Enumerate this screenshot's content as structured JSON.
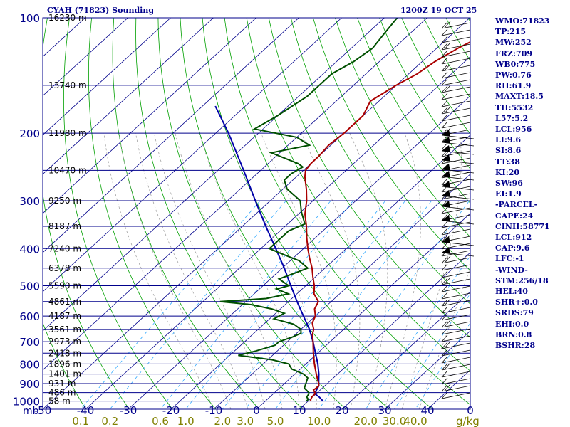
{
  "header": {
    "station": "CYAH (71823) Sounding",
    "time": "1200Z 19 OCT 25"
  },
  "indices": [
    "WMO:71823",
    "TP:215",
    "MW:252",
    "FRZ:709",
    "WB0:775",
    "PW:0.76",
    "RH:61.9",
    "MAXT:18.5",
    "TH:5532",
    "L57:5.2",
    "LCL:956",
    "LI:9.6",
    "SI:8.6",
    "TT:38",
    "KI:20",
    "SW:96",
    "EI:1.9",
    "-PARCEL-",
    "CAPE:24",
    "CINH:58771",
    "LCL:912",
    "CAP:9.6",
    "LFC:-1",
    "-WIND-",
    "STM:256/18",
    "HEL:40",
    "SHR+:0.0",
    "SRDS:79",
    "EHI:0.0",
    "BRN:0.8",
    "BSHR:28"
  ],
  "colors": {
    "border": "#00008b",
    "isobar": "#00008b",
    "isotherm": "#00008b",
    "dry_adiabat": "#00a000",
    "moist_adiabat": "#9a9a9a",
    "mixing_ratio": "#33aaff",
    "temperature": "#aa0000",
    "dewpoint": "#005000",
    "parcel": "#0000aa",
    "wind": "#000000",
    "text": "#00008b",
    "mixing_label": "#808000"
  },
  "chart_data": {
    "type": "skew-t log-p sounding",
    "title": "CYAH (71823) Sounding",
    "ylabel": "mb",
    "xlabel_units": "C",
    "mixing_ratio_units": "g/kg",
    "pressure_ticks": [
      100,
      200,
      300,
      400,
      500,
      600,
      700,
      800,
      900,
      1000
    ],
    "temperature_ticks": [
      -50,
      -40,
      -30,
      -20,
      -10,
      0,
      10,
      20,
      30,
      40
    ],
    "temperature_tick_labels": [
      "-50",
      "-40",
      "-30",
      "-20",
      "-10",
      "0",
      "10",
      "20",
      "30",
      "40"
    ],
    "mixing_ratio_labels": [
      "0.1",
      "0.2",
      "0.6",
      "1.0",
      "2.0",
      "3.0",
      "5.0",
      "10.0",
      "20.0",
      "30.0",
      "40.0"
    ],
    "mixing_ratio_values": [
      0.1,
      0.2,
      0.6,
      1.0,
      2.0,
      3.0,
      5.0,
      10.0,
      20.0,
      30.0,
      40.0
    ],
    "trailing_tick": "0",
    "height_labels": [
      {
        "p": 100,
        "label": "16230 m"
      },
      {
        "p": 150,
        "label": "13740 m"
      },
      {
        "p": 200,
        "label": "11980 m"
      },
      {
        "p": 250,
        "label": "10470 m"
      },
      {
        "p": 300,
        "label": "9250 m"
      },
      {
        "p": 350,
        "label": "8187 m"
      },
      {
        "p": 400,
        "label": "7240 m"
      },
      {
        "p": 450,
        "label": "6378 m"
      },
      {
        "p": 500,
        "label": "5590 m"
      },
      {
        "p": 550,
        "label": "4861 m"
      },
      {
        "p": 600,
        "label": "4187 m"
      },
      {
        "p": 650,
        "label": "3561 m"
      },
      {
        "p": 700,
        "label": "2973 m"
      },
      {
        "p": 750,
        "label": "2418 m"
      },
      {
        "p": 800,
        "label": "1896 m"
      },
      {
        "p": 850,
        "label": "1401 m"
      },
      {
        "p": 900,
        "label": "931 m"
      },
      {
        "p": 950,
        "label": "486 m"
      },
      {
        "p": 1000,
        "label": "58 m"
      }
    ],
    "temperature": [
      [
        1000,
        10.6
      ],
      [
        990,
        10.2
      ],
      [
        975,
        9.8
      ],
      [
        960,
        9.8
      ],
      [
        950,
        9.4
      ],
      [
        935,
        8.4
      ],
      [
        925,
        8.6
      ],
      [
        912,
        8.6
      ],
      [
        900,
        8.0
      ],
      [
        850,
        5.0
      ],
      [
        800,
        2.0
      ],
      [
        750,
        -1.0
      ],
      [
        700,
        -4.0
      ],
      [
        670,
        -6.0
      ],
      [
        650,
        -7.0
      ],
      [
        625,
        -9.0
      ],
      [
        600,
        -10.0
      ],
      [
        575,
        -12.0
      ],
      [
        550,
        -13.0
      ],
      [
        525,
        -16.0
      ],
      [
        500,
        -18.0
      ],
      [
        475,
        -20.5
      ],
      [
        450,
        -23.0
      ],
      [
        425,
        -26.0
      ],
      [
        400,
        -29.0
      ],
      [
        375,
        -32.0
      ],
      [
        350,
        -35.0
      ],
      [
        325,
        -38.5
      ],
      [
        300,
        -41.5
      ],
      [
        280,
        -44.5
      ],
      [
        260,
        -48.0
      ],
      [
        250,
        -49.5
      ],
      [
        240,
        -50.0
      ],
      [
        230,
        -50.0
      ],
      [
        215,
        -50.5
      ],
      [
        200,
        -50.0
      ],
      [
        180,
        -50.0
      ],
      [
        165,
        -52.0
      ],
      [
        150,
        -50.0
      ],
      [
        140,
        -48.0
      ],
      [
        130,
        -47.0
      ],
      [
        120,
        -45.0
      ],
      [
        110,
        -42.0
      ],
      [
        100,
        -40.0
      ]
    ],
    "dewpoint": [
      [
        1000,
        9.6
      ],
      [
        990,
        9.6
      ],
      [
        975,
        8.6
      ],
      [
        960,
        8.4
      ],
      [
        950,
        8.0
      ],
      [
        925,
        5.8
      ],
      [
        900,
        5.0
      ],
      [
        870,
        4.0
      ],
      [
        850,
        2.0
      ],
      [
        825,
        -2.0
      ],
      [
        800,
        -4.0
      ],
      [
        780,
        -9.0
      ],
      [
        760,
        -18.0
      ],
      [
        740,
        -15.0
      ],
      [
        715,
        -12.0
      ],
      [
        700,
        -12.0
      ],
      [
        680,
        -10.0
      ],
      [
        665,
        -9.0
      ],
      [
        650,
        -10.0
      ],
      [
        630,
        -13.0
      ],
      [
        610,
        -19.0
      ],
      [
        590,
        -18.0
      ],
      [
        575,
        -22.0
      ],
      [
        560,
        -28.0
      ],
      [
        550,
        -36.0
      ],
      [
        540,
        -26.0
      ],
      [
        525,
        -22.0
      ],
      [
        510,
        -26.0
      ],
      [
        500,
        -24.0
      ],
      [
        480,
        -28.0
      ],
      [
        465,
        -26.0
      ],
      [
        450,
        -24.0
      ],
      [
        430,
        -28.0
      ],
      [
        415,
        -33.0
      ],
      [
        400,
        -38.0
      ],
      [
        380,
        -38.0
      ],
      [
        360,
        -38.0
      ],
      [
        345,
        -36.0
      ],
      [
        320,
        -40.0
      ],
      [
        300,
        -43.0
      ],
      [
        280,
        -49.0
      ],
      [
        265,
        -52.0
      ],
      [
        255,
        -52.0
      ],
      [
        245,
        -51.0
      ],
      [
        240,
        -53.0
      ],
      [
        225,
        -62.0
      ],
      [
        215,
        -55.0
      ],
      [
        205,
        -60.0
      ],
      [
        195,
        -72.0
      ],
      [
        180,
        -70.0
      ],
      [
        160,
        -68.0
      ],
      [
        150,
        -68.0
      ],
      [
        140,
        -68.0
      ],
      [
        130,
        -66.0
      ],
      [
        120,
        -65.0
      ],
      [
        110,
        -66.0
      ],
      [
        100,
        -67.0
      ]
    ],
    "parcel": [
      [
        1000,
        13.5
      ],
      [
        975,
        11.5
      ],
      [
        956,
        9.6
      ],
      [
        912,
        8.6
      ],
      [
        900,
        8.0
      ],
      [
        850,
        5.6
      ],
      [
        800,
        2.8
      ],
      [
        750,
        -0.5
      ],
      [
        700,
        -4.0
      ],
      [
        650,
        -8.0
      ],
      [
        600,
        -12.8
      ],
      [
        550,
        -18.0
      ],
      [
        500,
        -23.5
      ],
      [
        450,
        -29.5
      ],
      [
        400,
        -36.5
      ],
      [
        350,
        -44.5
      ],
      [
        300,
        -53.5
      ],
      [
        250,
        -64.0
      ],
      [
        200,
        -77.0
      ],
      [
        170,
        -87.0
      ]
    ],
    "wind_barbs_note": "Wind barbs plotted along right edge"
  }
}
